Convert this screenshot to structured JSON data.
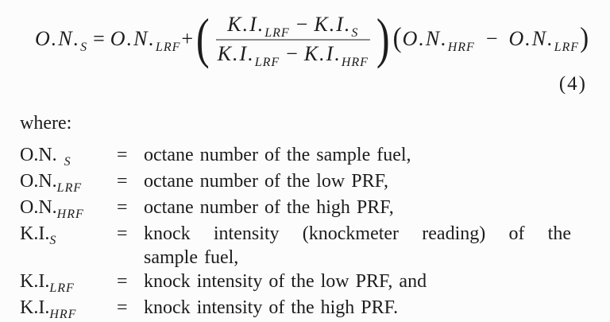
{
  "equation": {
    "number_label": "(4)",
    "equals": "=",
    "plus": "+",
    "minus": "−",
    "paren_open": "(",
    "paren_close": ")",
    "lhs": {
      "base": "O.N.",
      "sub": "S"
    },
    "rhs_first_term": {
      "base": "O.N.",
      "sub": "LRF"
    },
    "fraction": {
      "numerator": {
        "left": {
          "base": "K.I.",
          "sub": "LRF"
        },
        "right": {
          "base": "K.I.",
          "sub": "S"
        }
      },
      "denominator": {
        "left": {
          "base": "K.I.",
          "sub": "LRF"
        },
        "right": {
          "base": "K.I.",
          "sub": "HRF"
        }
      }
    },
    "factor": {
      "left": {
        "base": "O.N.",
        "sub": "HRF"
      },
      "right": {
        "base": "O.N.",
        "sub": "LRF"
      }
    }
  },
  "definitions": {
    "intro": "where:",
    "equals": "=",
    "rows": [
      {
        "base": "O.N.",
        "sub": "S",
        "desc": "octane number of the sample fuel,"
      },
      {
        "base": "O.N.",
        "sub": "LRF",
        "desc": "octane number of the low PRF,"
      },
      {
        "base": "O.N.",
        "sub": "HRF",
        "desc": "octane number of the high PRF,"
      },
      {
        "base": "K.I.",
        "sub": "S",
        "desc_line1": "knock intensity (knockmeter reading) of the",
        "desc_line2": "sample fuel,"
      },
      {
        "base": "K.I.",
        "sub": "LRF",
        "desc": "knock intensity of the low PRF, and"
      },
      {
        "base": "K.I.",
        "sub": "HRF",
        "desc": "knock intensity of the high PRF."
      }
    ]
  }
}
